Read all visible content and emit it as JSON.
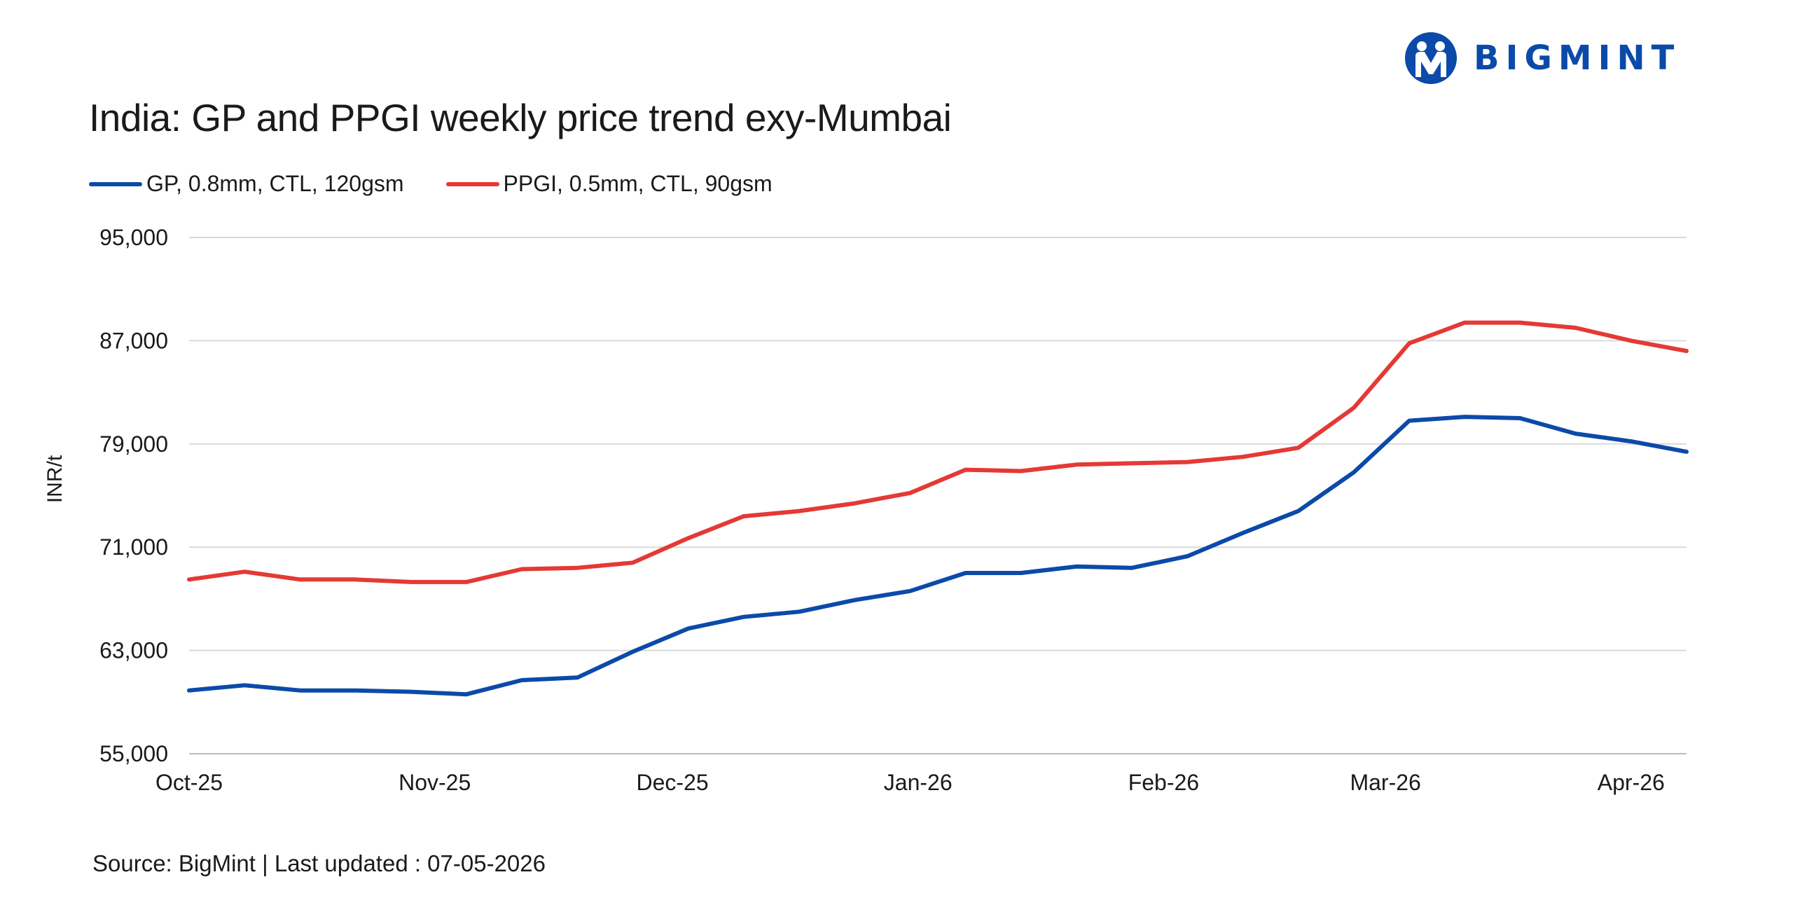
{
  "brand": {
    "name": "BIGMINT",
    "color": "#0b4aa8"
  },
  "footer": {
    "source": "Source: BigMint | Last updated : 07-05-2026"
  },
  "chart_data": {
    "type": "line",
    "title": "India: GP and PPGI weekly price trend exy-Mumbai",
    "xlabel": "",
    "ylabel": "INR/t",
    "ylim": [
      55000,
      95000
    ],
    "yticks": [
      55000,
      63000,
      71000,
      79000,
      87000,
      95000
    ],
    "ytick_labels": [
      "55,000",
      "63,000",
      "71,000",
      "79,000",
      "87,000",
      "95,000"
    ],
    "xtick_labels": [
      "Oct-25",
      "Nov-25",
      "Dec-25",
      "Jan-26",
      "Feb-26",
      "Mar-26",
      "Apr-26"
    ],
    "grid": "horizontal",
    "legend_position": "top-left",
    "x": [
      "2025-10-01",
      "2025-10-08",
      "2025-10-15",
      "2025-10-22",
      "2025-10-29",
      "2025-11-05",
      "2025-11-12",
      "2025-11-19",
      "2025-11-26",
      "2025-12-03",
      "2025-12-10",
      "2025-12-17",
      "2025-12-24",
      "2025-12-31",
      "2026-01-07",
      "2026-01-14",
      "2026-01-21",
      "2026-01-28",
      "2026-02-04",
      "2026-02-11",
      "2026-02-18",
      "2026-02-25",
      "2026-03-04",
      "2026-03-11",
      "2026-03-18",
      "2026-03-25",
      "2026-04-01",
      "2026-04-08"
    ],
    "series": [
      {
        "name": "GP, 0.8mm, CTL, 120gsm",
        "color": "#0b4aa8",
        "values": [
          59900,
          60300,
          59900,
          59900,
          59800,
          59600,
          60700,
          60900,
          62900,
          64700,
          65600,
          66000,
          66900,
          67600,
          69000,
          69000,
          69500,
          69400,
          70300,
          72100,
          73800,
          76800,
          80800,
          81100,
          81000,
          79800,
          79200,
          78400
        ]
      },
      {
        "name": "PPGI, 0.5mm, CTL, 90gsm",
        "color": "#e53935",
        "values": [
          68500,
          69100,
          68500,
          68500,
          68300,
          68300,
          69300,
          69400,
          69800,
          71700,
          73400,
          73800,
          74400,
          75200,
          77000,
          76900,
          77400,
          77500,
          77600,
          78000,
          78700,
          81800,
          86800,
          88400,
          88400,
          88000,
          87000,
          86200
        ]
      }
    ]
  }
}
